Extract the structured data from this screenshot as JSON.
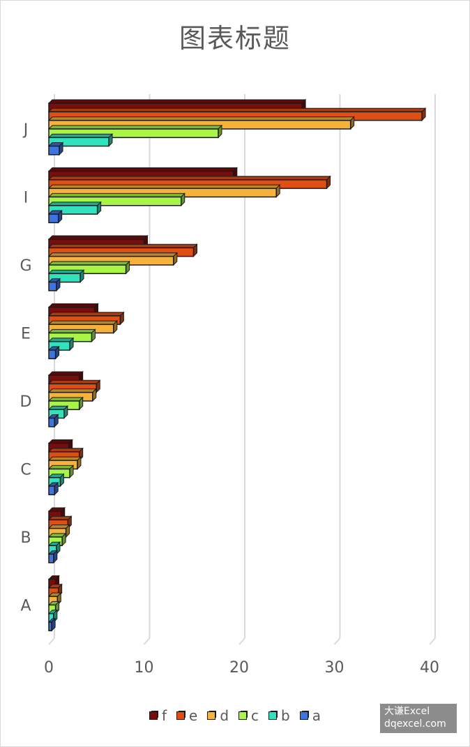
{
  "chart_data": {
    "type": "bar",
    "orientation": "horizontal",
    "title": "图表标题",
    "categories": [
      "A",
      "B",
      "C",
      "D",
      "E",
      "G",
      "I",
      "J"
    ],
    "series": [
      {
        "name": "f",
        "color": "#7a0c0c",
        "values": [
          0.7,
          1.3,
          2.1,
          3.2,
          4.8,
          10,
          19.4,
          26.6
        ]
      },
      {
        "name": "e",
        "color": "#e04e14",
        "values": [
          1.0,
          2.0,
          3.2,
          5.0,
          7.5,
          15.2,
          29.2,
          39.2
        ]
      },
      {
        "name": "d",
        "color": "#f7b23b",
        "values": [
          0.9,
          1.8,
          3.0,
          4.6,
          6.8,
          13.1,
          23.9,
          31.7
        ]
      },
      {
        "name": "c",
        "color": "#a8f547",
        "values": [
          0.7,
          1.4,
          2.2,
          3.2,
          4.5,
          8.1,
          13.9,
          17.8
        ]
      },
      {
        "name": "b",
        "color": "#2ee3be",
        "values": [
          0.5,
          0.8,
          1.2,
          1.6,
          2.2,
          3.3,
          5.1,
          6.3
        ]
      },
      {
        "name": "a",
        "color": "#3c74e0",
        "values": [
          0.3,
          0.5,
          0.6,
          0.6,
          0.7,
          0.8,
          1.0,
          1.1
        ]
      }
    ],
    "xlim": [
      0,
      40
    ],
    "xticks": [
      0,
      10,
      20,
      30,
      40
    ],
    "grid": true,
    "legend_position": "bottom",
    "style": "3d-bar"
  },
  "watermark": {
    "line1": "大谦Excel",
    "line2": "dqexcel.com"
  }
}
